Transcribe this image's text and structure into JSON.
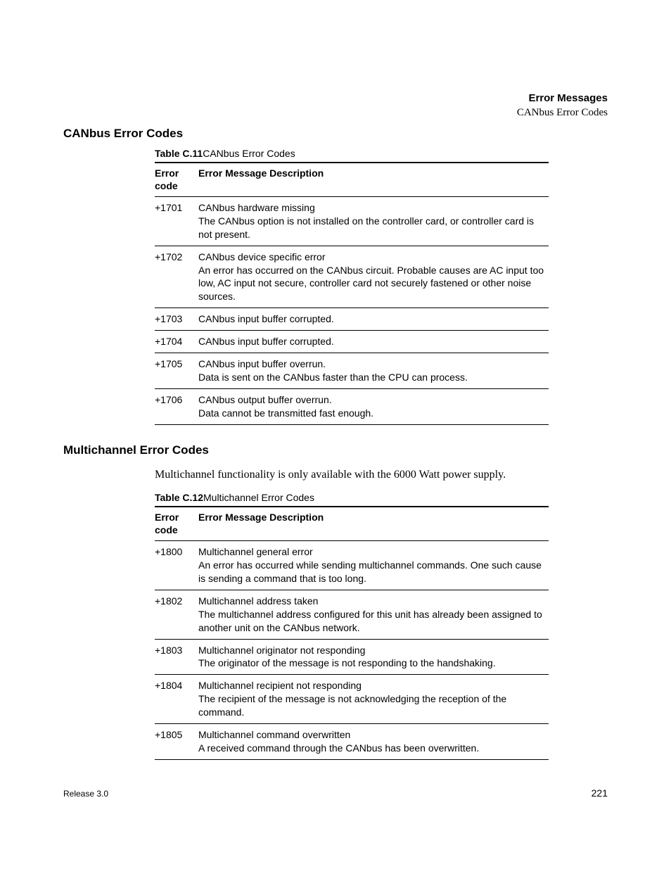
{
  "header": {
    "title": "Error Messages",
    "subtitle": "CANbus Error Codes"
  },
  "section1": {
    "heading": "CANbus Error Codes",
    "table": {
      "caption_label": "Table C.11",
      "caption_text": "CANbus Error Codes",
      "columns": {
        "code": "Error code",
        "desc": "Error Message Description"
      },
      "rows": [
        {
          "code": "+1701",
          "desc": "CANbus hardware missing\nThe CANbus option is not installed on the controller card, or controller card is not present."
        },
        {
          "code": "+1702",
          "desc": "CANbus device specific error\nAn error has occurred on the CANbus circuit. Probable causes are AC input too low, AC input not secure, controller card not securely fastened or other noise sources."
        },
        {
          "code": "+1703",
          "desc": "CANbus input buffer corrupted."
        },
        {
          "code": "+1704",
          "desc": "CANbus input buffer corrupted."
        },
        {
          "code": "+1705",
          "desc": "CANbus input buffer overrun.\nData is sent on the CANbus faster than the CPU can process."
        },
        {
          "code": "+1706",
          "desc": "CANbus output buffer overrun.\nData cannot be transmitted fast enough."
        }
      ]
    }
  },
  "section2": {
    "heading": "Multichannel Error Codes",
    "note": "Multichannel functionality is only available with the 6000 Watt power supply.",
    "table": {
      "caption_label": "Table C.12",
      "caption_text": "Multichannel Error Codes",
      "columns": {
        "code": "Error code",
        "desc": "Error Message Description"
      },
      "rows": [
        {
          "code": "+1800",
          "desc": "Multichannel general error\nAn error has occurred while sending multichannel commands. One such cause is sending a command that is too long."
        },
        {
          "code": "+1802",
          "desc": "Multichannel address taken\nThe multichannel address configured for this unit has already been assigned to another unit on the CANbus network."
        },
        {
          "code": "+1803",
          "desc": "Multichannel originator not responding\nThe originator of the message is not responding to the handshaking."
        },
        {
          "code": "+1804",
          "desc": "Multichannel recipient not responding\nThe recipient of the message is not acknowledging the reception of the command."
        },
        {
          "code": "+1805",
          "desc": "Multichannel command overwritten\nA received command through the CANbus has been overwritten."
        }
      ]
    }
  },
  "footer": {
    "release": "Release 3.0",
    "page": "221"
  }
}
